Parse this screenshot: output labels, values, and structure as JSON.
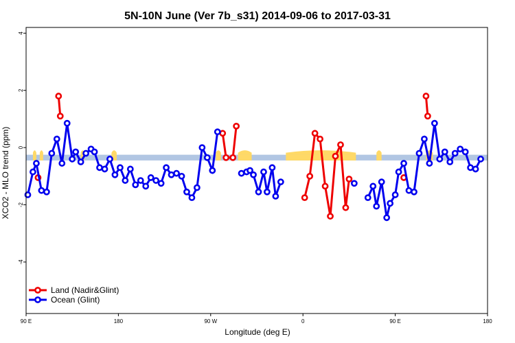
{
  "chart_data": {
    "type": "line",
    "title": "5N-10N June (Ver 7b_s31)   2014-09-06 to 2017-03-31",
    "xlabel": "Longitude (deg E)",
    "ylabel": "XCO2 - MLO trend (ppm)",
    "xlim": [
      -90,
      180
    ],
    "ylim": [
      -5.8,
      4.2
    ],
    "x_ticks": [
      {
        "value": -90,
        "label": "90 E"
      },
      {
        "value": -36,
        "label": "180"
      },
      {
        "value": 18,
        "label": "90 W"
      },
      {
        "value": 72,
        "label": "0"
      },
      {
        "value": 126,
        "label": "90 E"
      },
      {
        "value": 180,
        "label": "180"
      }
    ],
    "y_ticks": [
      {
        "value": -4,
        "label": "-4"
      },
      {
        "value": -2,
        "label": "-2"
      },
      {
        "value": 0,
        "label": "0"
      },
      {
        "value": 2,
        "label": "2"
      },
      {
        "value": 4,
        "label": "4"
      }
    ],
    "legend_position": "bottom-left",
    "band": {
      "y_min": -0.45,
      "y_max": -0.25,
      "color": "#a9c0e0"
    },
    "land_fill_color": "#ffd966",
    "land_regions": [
      [
        -86,
        -84
      ],
      [
        -82,
        -80
      ],
      [
        -58,
        -56
      ],
      [
        -40,
        -37
      ],
      [
        21,
        24
      ],
      [
        34,
        42
      ],
      [
        62,
        103
      ],
      [
        115,
        118
      ],
      [
        144,
        148
      ]
    ],
    "series": [
      {
        "name": "Land (Nadir&Glint)",
        "color": "#ee0000",
        "segments": [
          [
            [
              -83,
              -1.05
            ]
          ],
          [
            [
              -71,
              1.8
            ],
            [
              -70,
              1.1
            ]
          ],
          [
            [
              25,
              0.5
            ],
            [
              27,
              -0.35
            ],
            [
              31,
              -0.35
            ],
            [
              33,
              0.75
            ]
          ],
          [
            [
              73,
              -1.75
            ],
            [
              76,
              -1.0
            ],
            [
              79,
              0.5
            ],
            [
              82,
              0.3
            ],
            [
              85,
              -1.35
            ],
            [
              88,
              -2.4
            ],
            [
              91,
              -0.3
            ],
            [
              94,
              0.1
            ],
            [
              97,
              -2.1
            ],
            [
              99,
              -1.1
            ]
          ],
          [
            [
              131,
              -1.05
            ]
          ],
          [
            [
              144,
              1.8
            ],
            [
              145,
              1.1
            ]
          ]
        ]
      },
      {
        "name": "Ocean (Glint)",
        "color": "#0000ee",
        "segments": [
          [
            [
              -89,
              -1.65
            ],
            [
              -86,
              -0.85
            ],
            [
              -84,
              -0.55
            ],
            [
              -81,
              -1.5
            ],
            [
              -78,
              -1.55
            ],
            [
              -75,
              -0.2
            ],
            [
              -72,
              0.3
            ],
            [
              -69,
              -0.55
            ],
            [
              -66,
              0.85
            ],
            [
              -63,
              -0.4
            ],
            [
              -61,
              -0.15
            ],
            [
              -58,
              -0.5
            ],
            [
              -55,
              -0.2
            ],
            [
              -52,
              -0.05
            ],
            [
              -50,
              -0.15
            ],
            [
              -47,
              -0.7
            ],
            [
              -44,
              -0.75
            ],
            [
              -41,
              -0.4
            ],
            [
              -38,
              -0.95
            ],
            [
              -35,
              -0.7
            ],
            [
              -32,
              -1.15
            ],
            [
              -29,
              -0.75
            ],
            [
              -26,
              -1.3
            ],
            [
              -23,
              -1.15
            ],
            [
              -20,
              -1.35
            ],
            [
              -17,
              -1.05
            ],
            [
              -14,
              -1.15
            ],
            [
              -11,
              -1.25
            ],
            [
              -8,
              -0.7
            ],
            [
              -5,
              -0.95
            ],
            [
              -2,
              -0.9
            ],
            [
              1,
              -1.0
            ],
            [
              4,
              -1.55
            ],
            [
              7,
              -1.75
            ],
            [
              10,
              -1.4
            ],
            [
              13,
              0.0
            ],
            [
              16,
              -0.35
            ],
            [
              19,
              -0.8
            ],
            [
              22,
              0.55
            ]
          ],
          [
            [
              36,
              -0.9
            ],
            [
              39,
              -0.85
            ],
            [
              41,
              -0.8
            ],
            [
              43,
              -0.95
            ],
            [
              46,
              -1.55
            ],
            [
              49,
              -0.85
            ],
            [
              51,
              -1.55
            ],
            [
              54,
              -0.7
            ],
            [
              56,
              -1.7
            ],
            [
              59,
              -1.2
            ]
          ],
          [
            [
              102,
              -1.25
            ]
          ],
          [
            [
              110,
              -1.75
            ],
            [
              113,
              -1.35
            ],
            [
              115,
              -2.05
            ],
            [
              118,
              -1.2
            ],
            [
              121,
              -2.45
            ],
            [
              123,
              -1.95
            ],
            [
              126,
              -1.65
            ],
            [
              128,
              -0.85
            ],
            [
              131,
              -0.55
            ],
            [
              134,
              -1.5
            ],
            [
              137,
              -1.55
            ],
            [
              140,
              -0.2
            ],
            [
              143,
              0.3
            ],
            [
              146,
              -0.55
            ],
            [
              149,
              0.85
            ],
            [
              152,
              -0.4
            ],
            [
              155,
              -0.15
            ],
            [
              158,
              -0.5
            ],
            [
              161,
              -0.2
            ],
            [
              164,
              -0.05
            ],
            [
              167,
              -0.15
            ],
            [
              170,
              -0.7
            ],
            [
              173,
              -0.75
            ],
            [
              176,
              -0.4
            ]
          ]
        ]
      }
    ]
  }
}
